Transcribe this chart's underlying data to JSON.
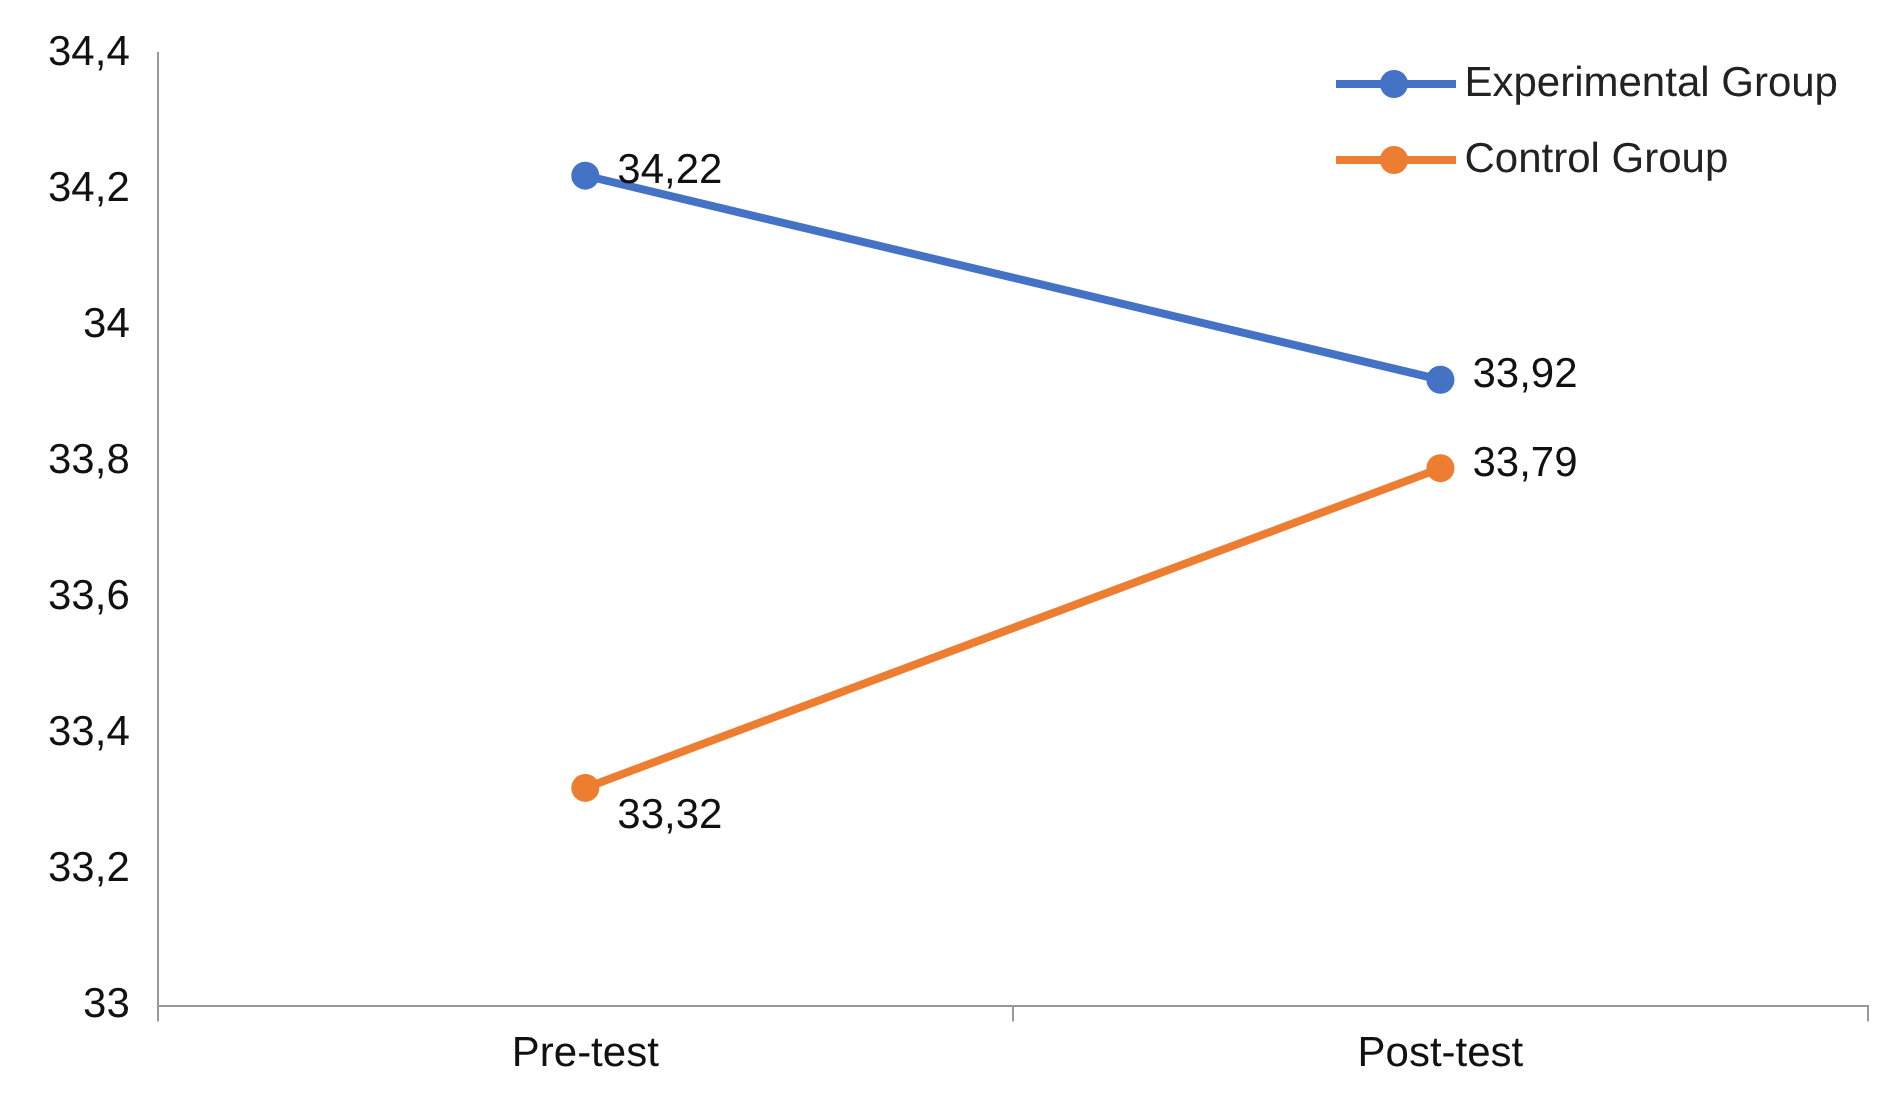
{
  "chart_data": {
    "type": "line",
    "categories": [
      "Pre-test",
      "Post-test"
    ],
    "series": [
      {
        "name": "Experimental Group",
        "color": "#4472c4",
        "values": [
          34.22,
          33.92
        ],
        "value_labels": [
          "34,22",
          "33,92"
        ]
      },
      {
        "name": "Control Group",
        "color": "#ed7d31",
        "values": [
          33.32,
          33.79
        ],
        "value_labels": [
          "33,32",
          "33,79"
        ]
      }
    ],
    "ylim": [
      33,
      34.4
    ],
    "yticks": [
      {
        "value": 33,
        "label": "33"
      },
      {
        "value": 33.2,
        "label": "33,2"
      },
      {
        "value": 33.4,
        "label": "33,4"
      },
      {
        "value": 33.6,
        "label": "33,6"
      },
      {
        "value": 33.8,
        "label": "33,8"
      },
      {
        "value": 34,
        "label": "34"
      },
      {
        "value": 34.2,
        "label": "34,2"
      },
      {
        "value": 34.4,
        "label": "34,4"
      }
    ],
    "grid": false,
    "legend": "top right",
    "marker": "circle",
    "line_style": "solid"
  }
}
